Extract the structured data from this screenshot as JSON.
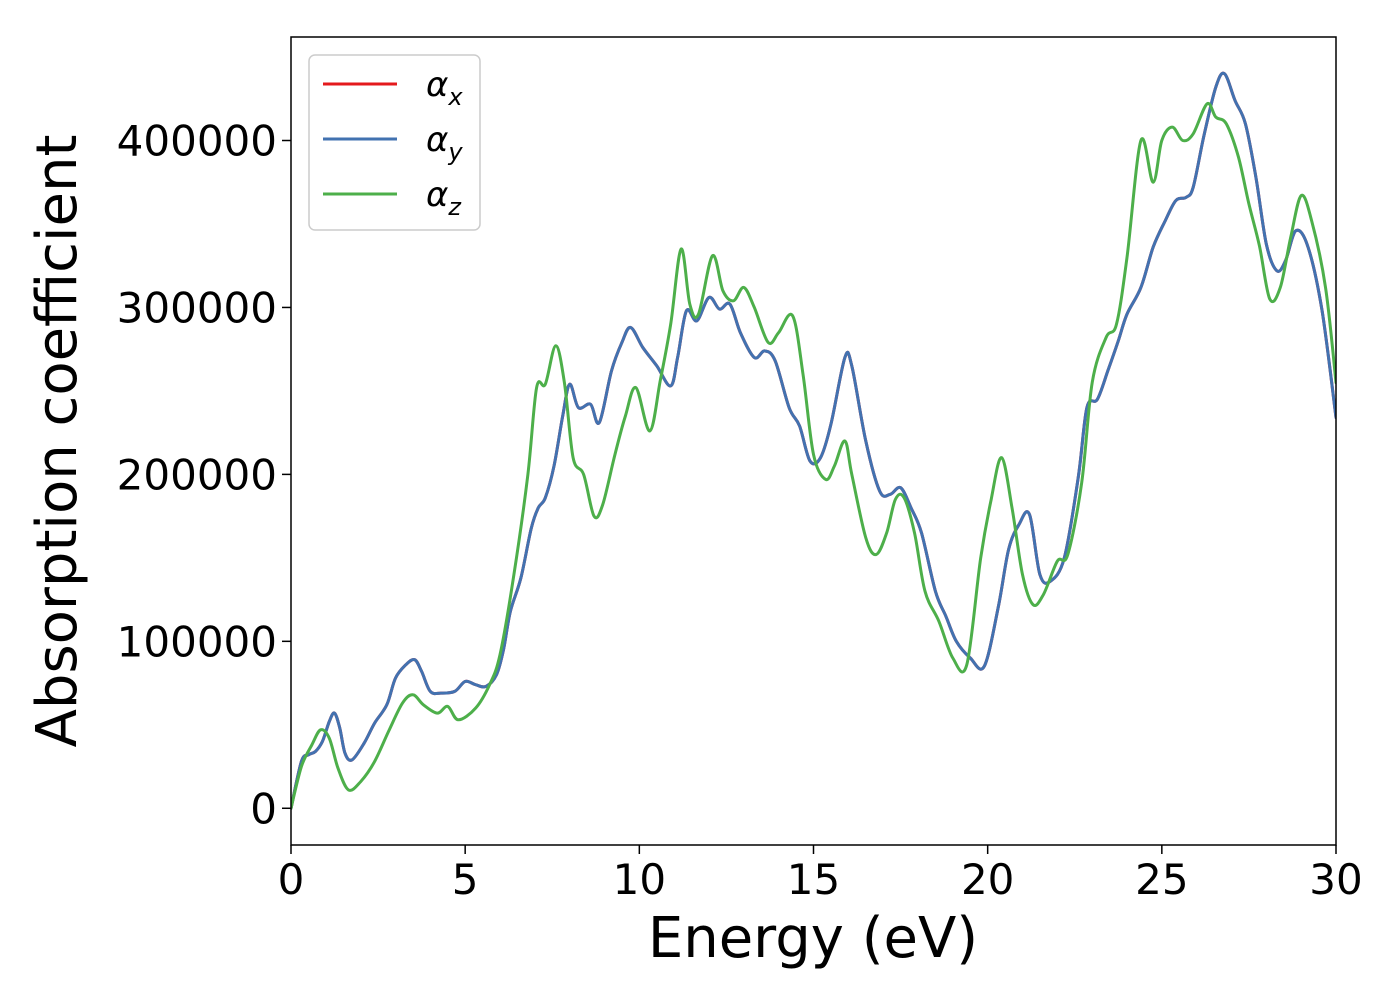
{
  "chart_data": {
    "type": "line",
    "xlabel": "Energy (eV)",
    "ylabel": "Absorption coefficient",
    "xlim": [
      0,
      30
    ],
    "ylim": [
      -22000,
      462000
    ],
    "xticks": [
      0,
      5,
      10,
      15,
      20,
      25,
      30
    ],
    "yticks": [
      0,
      100000,
      200000,
      300000,
      400000
    ],
    "grid": false,
    "legend_position": "top-left",
    "series": [
      {
        "name": "αx",
        "name_base": "α",
        "name_sub": "x",
        "color": "#e41a1c",
        "x": [
          0,
          0.3,
          0.5,
          0.7,
          0.9,
          1.1,
          1.25,
          1.4,
          1.55,
          1.75,
          2.1,
          2.4,
          2.75,
          3.0,
          3.3,
          3.55,
          3.75,
          4.0,
          4.3,
          4.7,
          5.0,
          5.3,
          5.6,
          5.9,
          6.1,
          6.3,
          6.6,
          6.9,
          7.1,
          7.3,
          7.55,
          7.8,
          8.0,
          8.25,
          8.6,
          8.85,
          9.2,
          9.5,
          9.75,
          10.1,
          10.5,
          10.9,
          11.1,
          11.35,
          11.65,
          12.0,
          12.3,
          12.6,
          12.9,
          13.3,
          13.6,
          13.9,
          14.3,
          14.6,
          14.9,
          15.2,
          15.5,
          15.9,
          16.1,
          16.5,
          16.9,
          17.2,
          17.5,
          17.8,
          18.1,
          18.5,
          18.8,
          19.1,
          19.5,
          19.9,
          20.3,
          20.6,
          20.9,
          21.2,
          21.5,
          21.8,
          22.2,
          22.6,
          22.85,
          23.15,
          23.45,
          23.75,
          24.0,
          24.4,
          24.75,
          25.1,
          25.4,
          25.7,
          25.9,
          26.2,
          26.55,
          26.8,
          27.1,
          27.4,
          27.7,
          28.0,
          28.3,
          28.55,
          28.85,
          29.2,
          29.6,
          30.0
        ],
        "values": [
          0,
          28000,
          32000,
          34000,
          40000,
          52000,
          57000,
          48000,
          33000,
          29000,
          39000,
          51000,
          62000,
          78000,
          86000,
          89000,
          82000,
          70000,
          69000,
          70000,
          76000,
          74000,
          73000,
          80000,
          95000,
          118000,
          138000,
          168000,
          180000,
          186000,
          205000,
          235000,
          254000,
          240000,
          242000,
          231000,
          262000,
          279000,
          288000,
          276000,
          265000,
          253000,
          270000,
          298000,
          292000,
          306000,
          299000,
          302000,
          285000,
          270000,
          274000,
          268000,
          240000,
          229000,
          208000,
          210000,
          230000,
          270000,
          265000,
          220000,
          190000,
          188000,
          192000,
          180000,
          165000,
          130000,
          115000,
          100000,
          90000,
          85000,
          120000,
          155000,
          170000,
          176000,
          140000,
          136000,
          150000,
          198000,
          240000,
          245000,
          262000,
          280000,
          296000,
          312000,
          336000,
          352000,
          364000,
          366000,
          372000,
          402000,
          432000,
          440000,
          424000,
          410000,
          378000,
          338000,
          322000,
          328000,
          346000,
          336000,
          298000,
          234000
        ]
      },
      {
        "name": "αy",
        "name_base": "α",
        "name_sub": "y",
        "color": "#4272b0",
        "x": [
          0,
          0.3,
          0.5,
          0.7,
          0.9,
          1.1,
          1.25,
          1.4,
          1.55,
          1.75,
          2.1,
          2.4,
          2.75,
          3.0,
          3.3,
          3.55,
          3.75,
          4.0,
          4.3,
          4.7,
          5.0,
          5.3,
          5.6,
          5.9,
          6.1,
          6.3,
          6.6,
          6.9,
          7.1,
          7.3,
          7.55,
          7.8,
          8.0,
          8.25,
          8.6,
          8.85,
          9.2,
          9.5,
          9.75,
          10.1,
          10.5,
          10.9,
          11.1,
          11.35,
          11.65,
          12.0,
          12.3,
          12.6,
          12.9,
          13.3,
          13.6,
          13.9,
          14.3,
          14.6,
          14.9,
          15.2,
          15.5,
          15.9,
          16.1,
          16.5,
          16.9,
          17.2,
          17.5,
          17.8,
          18.1,
          18.5,
          18.8,
          19.1,
          19.5,
          19.9,
          20.3,
          20.6,
          20.9,
          21.2,
          21.5,
          21.8,
          22.2,
          22.6,
          22.85,
          23.15,
          23.45,
          23.75,
          24.0,
          24.4,
          24.75,
          25.1,
          25.4,
          25.7,
          25.9,
          26.2,
          26.55,
          26.8,
          27.1,
          27.4,
          27.7,
          28.0,
          28.3,
          28.55,
          28.85,
          29.2,
          29.6,
          30.0
        ],
        "values": [
          0,
          28000,
          32000,
          34000,
          40000,
          52000,
          57000,
          48000,
          33000,
          29000,
          39000,
          51000,
          62000,
          78000,
          86000,
          89000,
          82000,
          70000,
          69000,
          70000,
          76000,
          74000,
          73000,
          80000,
          95000,
          118000,
          138000,
          168000,
          180000,
          186000,
          205000,
          235000,
          254000,
          240000,
          242000,
          231000,
          262000,
          279000,
          288000,
          276000,
          265000,
          253000,
          270000,
          298000,
          292000,
          306000,
          299000,
          302000,
          285000,
          270000,
          274000,
          268000,
          240000,
          229000,
          208000,
          210000,
          230000,
          270000,
          265000,
          220000,
          190000,
          188000,
          192000,
          180000,
          165000,
          130000,
          115000,
          100000,
          90000,
          85000,
          120000,
          155000,
          170000,
          176000,
          140000,
          136000,
          150000,
          198000,
          240000,
          245000,
          262000,
          280000,
          296000,
          312000,
          336000,
          352000,
          364000,
          366000,
          372000,
          402000,
          432000,
          440000,
          424000,
          410000,
          378000,
          338000,
          322000,
          328000,
          346000,
          336000,
          298000,
          234000
        ]
      },
      {
        "name": "αz",
        "name_base": "α",
        "name_sub": "z",
        "color": "#4daf4a",
        "x": [
          0,
          0.3,
          0.6,
          0.85,
          1.1,
          1.35,
          1.65,
          2.0,
          2.4,
          2.8,
          3.2,
          3.5,
          3.8,
          4.2,
          4.5,
          4.8,
          5.3,
          5.7,
          6.0,
          6.4,
          6.8,
          7.05,
          7.3,
          7.6,
          7.85,
          8.1,
          8.4,
          8.7,
          8.95,
          9.3,
          9.6,
          9.9,
          10.3,
          10.6,
          10.9,
          11.2,
          11.45,
          11.7,
          12.1,
          12.4,
          12.7,
          13.0,
          13.3,
          13.7,
          14.0,
          14.4,
          14.7,
          15.0,
          15.35,
          15.6,
          15.9,
          16.1,
          16.5,
          16.8,
          17.1,
          17.35,
          17.6,
          17.9,
          18.2,
          18.6,
          19.0,
          19.4,
          19.8,
          20.1,
          20.4,
          20.7,
          21.0,
          21.3,
          21.6,
          22.0,
          22.3,
          22.7,
          23.0,
          23.4,
          23.7,
          24.0,
          24.4,
          24.75,
          25.0,
          25.3,
          25.6,
          25.9,
          26.3,
          26.55,
          26.85,
          27.2,
          27.5,
          27.8,
          28.1,
          28.4,
          28.7,
          29.0,
          29.3,
          29.7,
          30.0
        ],
        "values": [
          0,
          25000,
          38000,
          47000,
          42000,
          24000,
          11000,
          16000,
          28000,
          46000,
          63000,
          68000,
          62000,
          57000,
          61000,
          53000,
          60000,
          74000,
          92000,
          140000,
          200000,
          252000,
          254000,
          277000,
          255000,
          210000,
          200000,
          175000,
          182000,
          212000,
          235000,
          252000,
          226000,
          256000,
          290000,
          335000,
          302000,
          296000,
          331000,
          310000,
          304000,
          312000,
          300000,
          279000,
          285000,
          295000,
          260000,
          212000,
          197000,
          205000,
          220000,
          200000,
          162000,
          152000,
          165000,
          185000,
          186000,
          165000,
          130000,
          112000,
          90000,
          86000,
          150000,
          185000,
          210000,
          180000,
          140000,
          122000,
          128000,
          148000,
          152000,
          195000,
          255000,
          282000,
          290000,
          330000,
          400000,
          375000,
          400000,
          408000,
          400000,
          404000,
          422000,
          414000,
          410000,
          390000,
          362000,
          337000,
          305000,
          312000,
          342000,
          367000,
          352000,
          312000,
          255000
        ]
      }
    ]
  }
}
